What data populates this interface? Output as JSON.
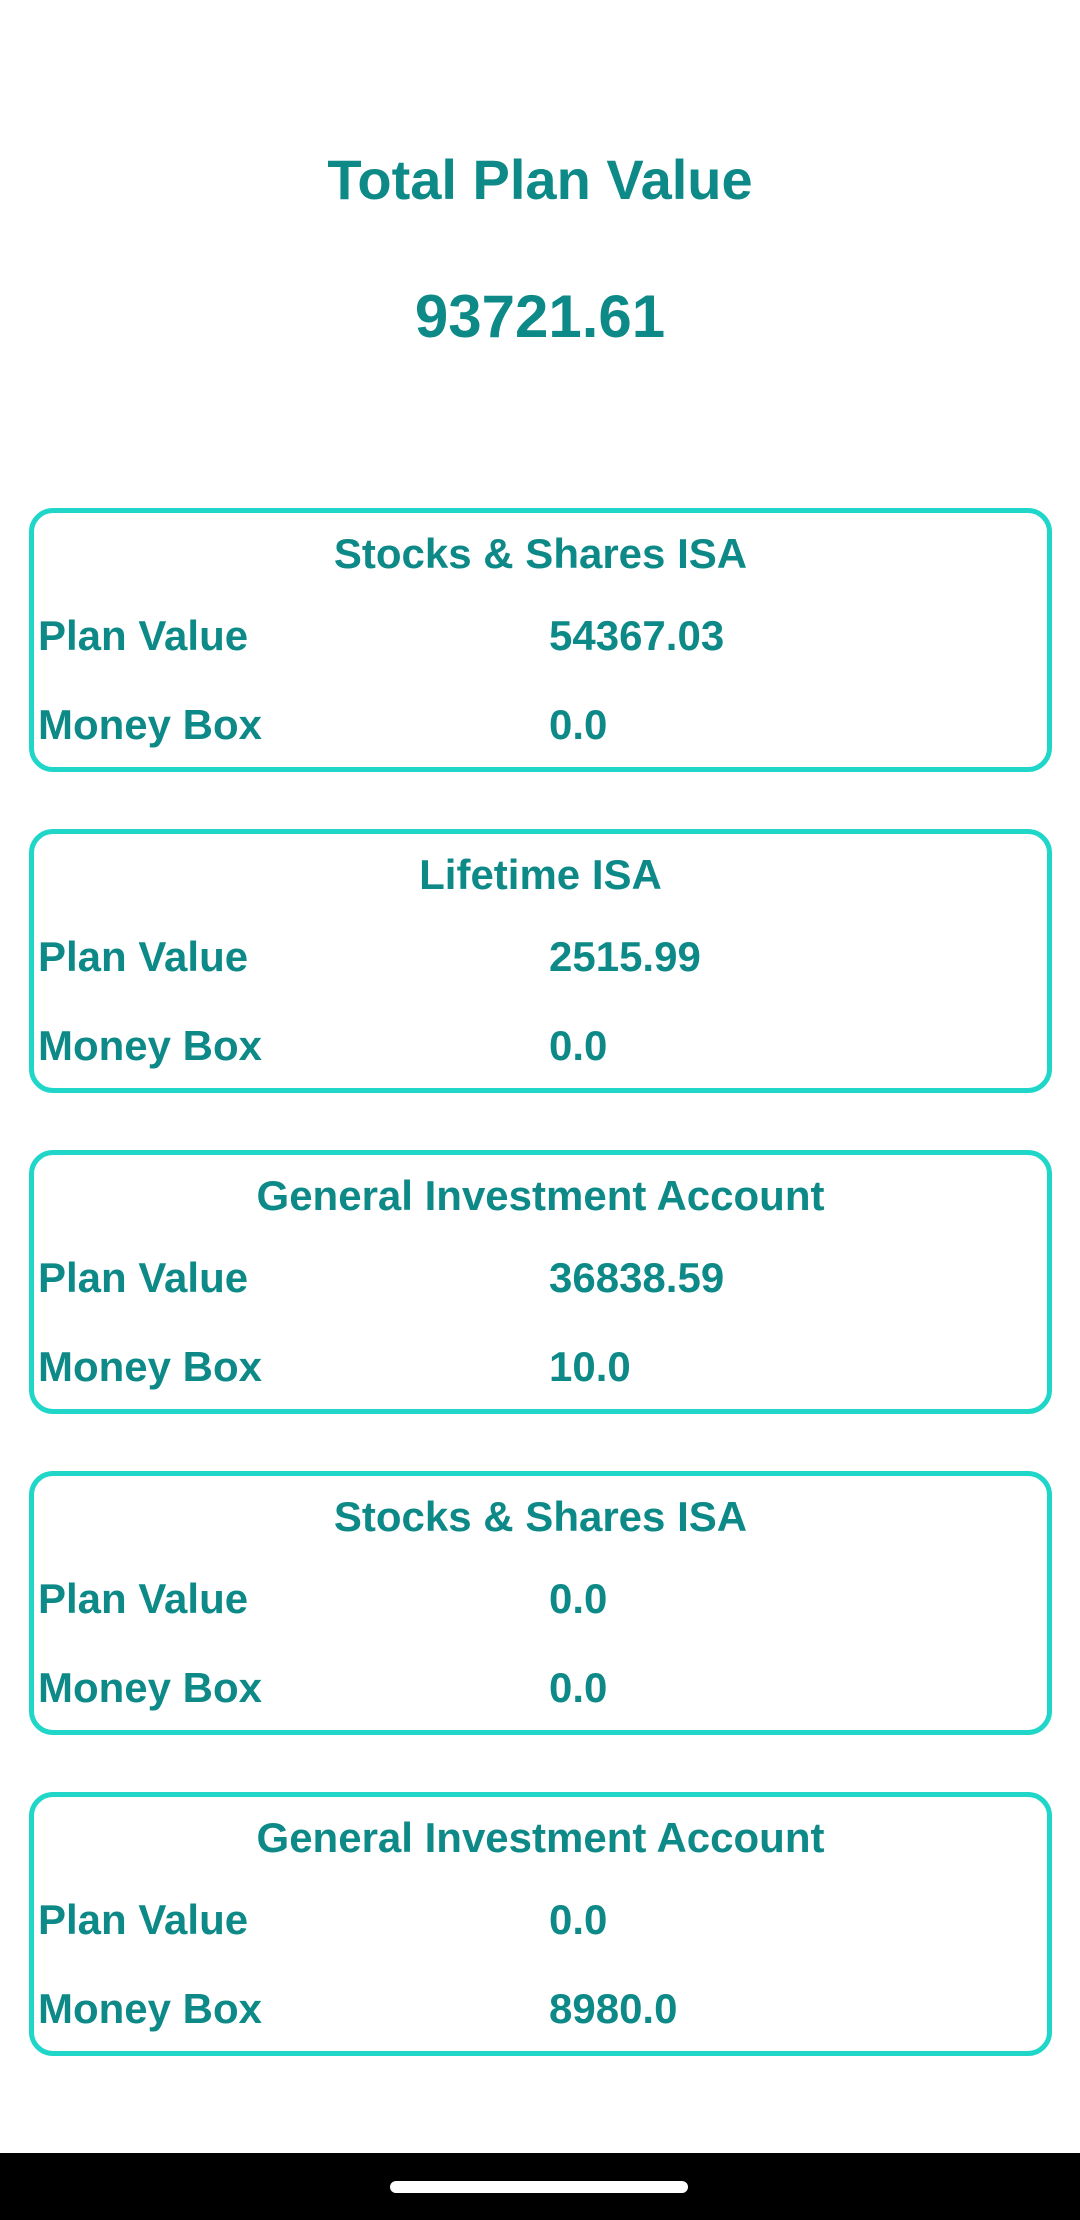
{
  "header": {
    "title": "Total Plan Value",
    "total_value": "93721.61"
  },
  "plans": [
    {
      "name": "Stocks & Shares ISA",
      "plan_value_label": "Plan Value",
      "plan_value": "54367.03",
      "money_box_label": "Money Box",
      "money_box": "0.0"
    },
    {
      "name": "Lifetime ISA",
      "plan_value_label": "Plan Value",
      "plan_value": "2515.99",
      "money_box_label": "Money Box",
      "money_box": "0.0"
    },
    {
      "name": "General Investment Account",
      "plan_value_label": "Plan Value",
      "plan_value": "36838.59",
      "money_box_label": "Money Box",
      "money_box": "10.0"
    },
    {
      "name": "Stocks & Shares ISA",
      "plan_value_label": "Plan Value",
      "plan_value": "0.0",
      "money_box_label": "Money Box",
      "money_box": "0.0"
    },
    {
      "name": "General Investment Account",
      "plan_value_label": "Plan Value",
      "plan_value": "0.0",
      "money_box_label": "Money Box",
      "money_box": "8980.0"
    }
  ],
  "colors": {
    "text_accent": "#0d8a87",
    "card_border": "#1fd6c9",
    "background": "#ffffff",
    "nav_bar": "#000000"
  }
}
